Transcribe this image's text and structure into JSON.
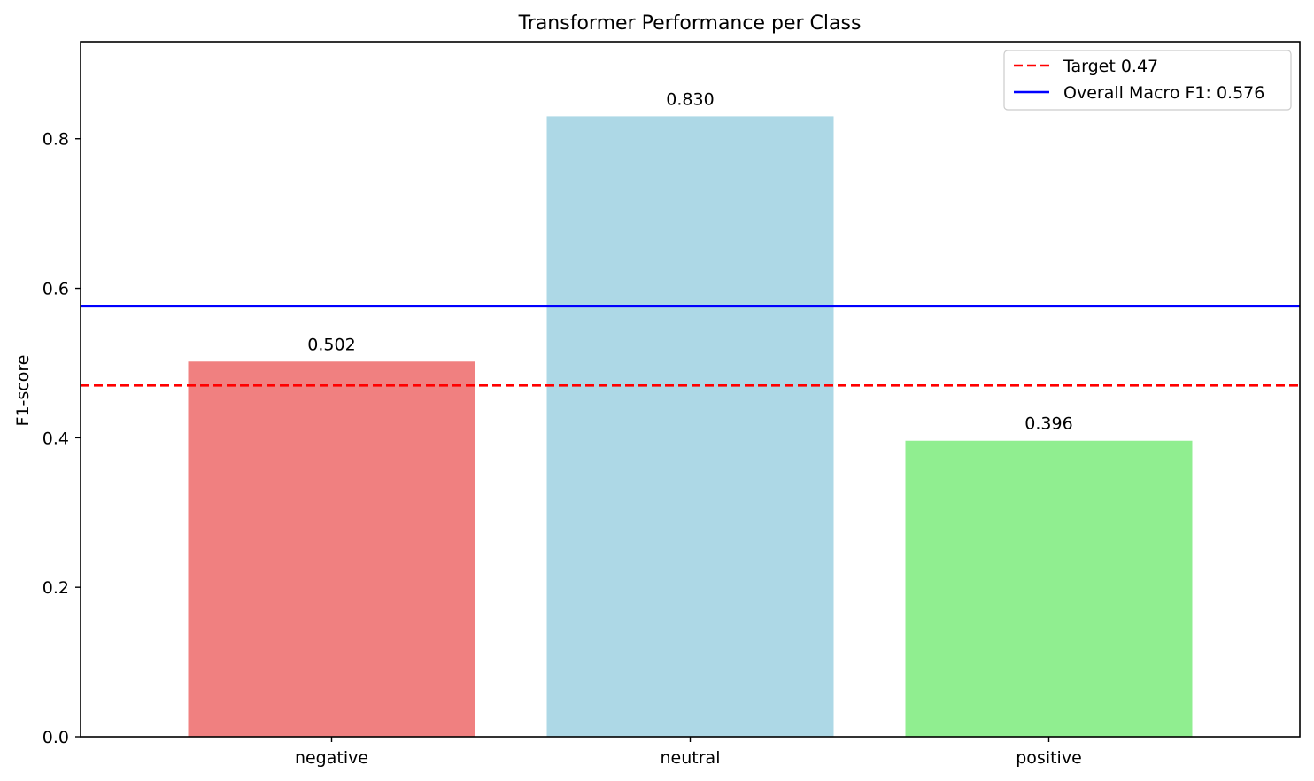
{
  "chart_data": {
    "type": "bar",
    "title": "Transformer Performance per Class",
    "xlabel": "",
    "ylabel": "F1-score",
    "categories": [
      "negative",
      "neutral",
      "positive"
    ],
    "values": [
      0.502,
      0.83,
      0.396
    ],
    "value_labels": [
      "0.502",
      "0.830",
      "0.396"
    ],
    "bar_colors": [
      "#f08080",
      "#add8e6",
      "#90ee90"
    ],
    "ylim": [
      0,
      0.93
    ],
    "yticks": [
      0.0,
      0.2,
      0.4,
      0.6,
      0.8
    ],
    "ytick_labels": [
      "0.0",
      "0.2",
      "0.4",
      "0.6",
      "0.8"
    ],
    "grid": false,
    "reference_lines": [
      {
        "label": "Target 0.47",
        "value": 0.47,
        "color": "#ff0000",
        "style": "dashed"
      },
      {
        "label": "Overall Macro F1: 0.576",
        "value": 0.576,
        "color": "#0000ff",
        "style": "solid"
      }
    ],
    "legend_position": "top-right"
  }
}
